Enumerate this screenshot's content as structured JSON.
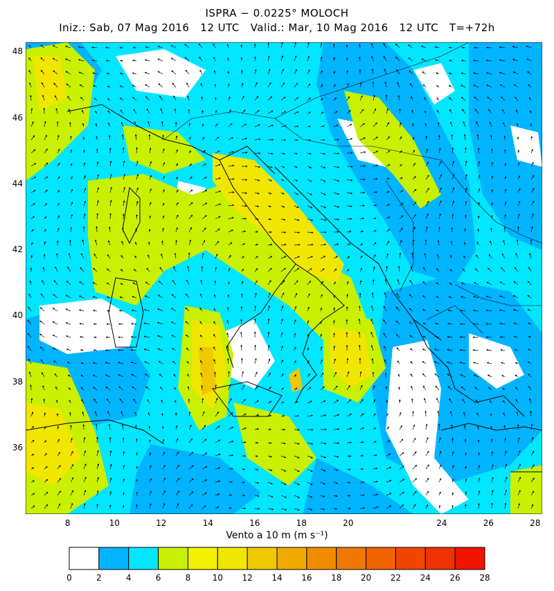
{
  "header": {
    "title": "ISPRA − 0.0225° MOLOCH",
    "subtitle": "Iniz.: Sab, 07 Mag 2016   12 UTC   Valid.: Mar, 10 Mag 2016   12 UTC   T=+72h"
  },
  "map": {
    "lat_ticks": [
      "36",
      "38",
      "40",
      "42",
      "44",
      "46",
      "48"
    ],
    "lon_ticks": [
      "8",
      "10",
      "12",
      "14",
      "16",
      "18",
      "20",
      "24",
      "26",
      "28"
    ],
    "lat_range": [
      34.0,
      48.3
    ],
    "lon_range": [
      6.2,
      28.3
    ],
    "background_color": "#ffffff",
    "coastline_color": "#000000"
  },
  "colorbar": {
    "label": "Vento a 10 m (m s⁻¹)",
    "tick_labels": [
      "0",
      "2",
      "4",
      "6",
      "8",
      "10",
      "12",
      "14",
      "16",
      "18",
      "20",
      "22",
      "24",
      "26",
      "28"
    ],
    "colors": [
      "#ffffff",
      "#00b4ff",
      "#00e6ff",
      "#c8f000",
      "#f0f000",
      "#f0e600",
      "#f0c800",
      "#f0aa00",
      "#f08c00",
      "#f07800",
      "#f06400",
      "#f04600",
      "#f03200",
      "#f01400"
    ]
  }
}
